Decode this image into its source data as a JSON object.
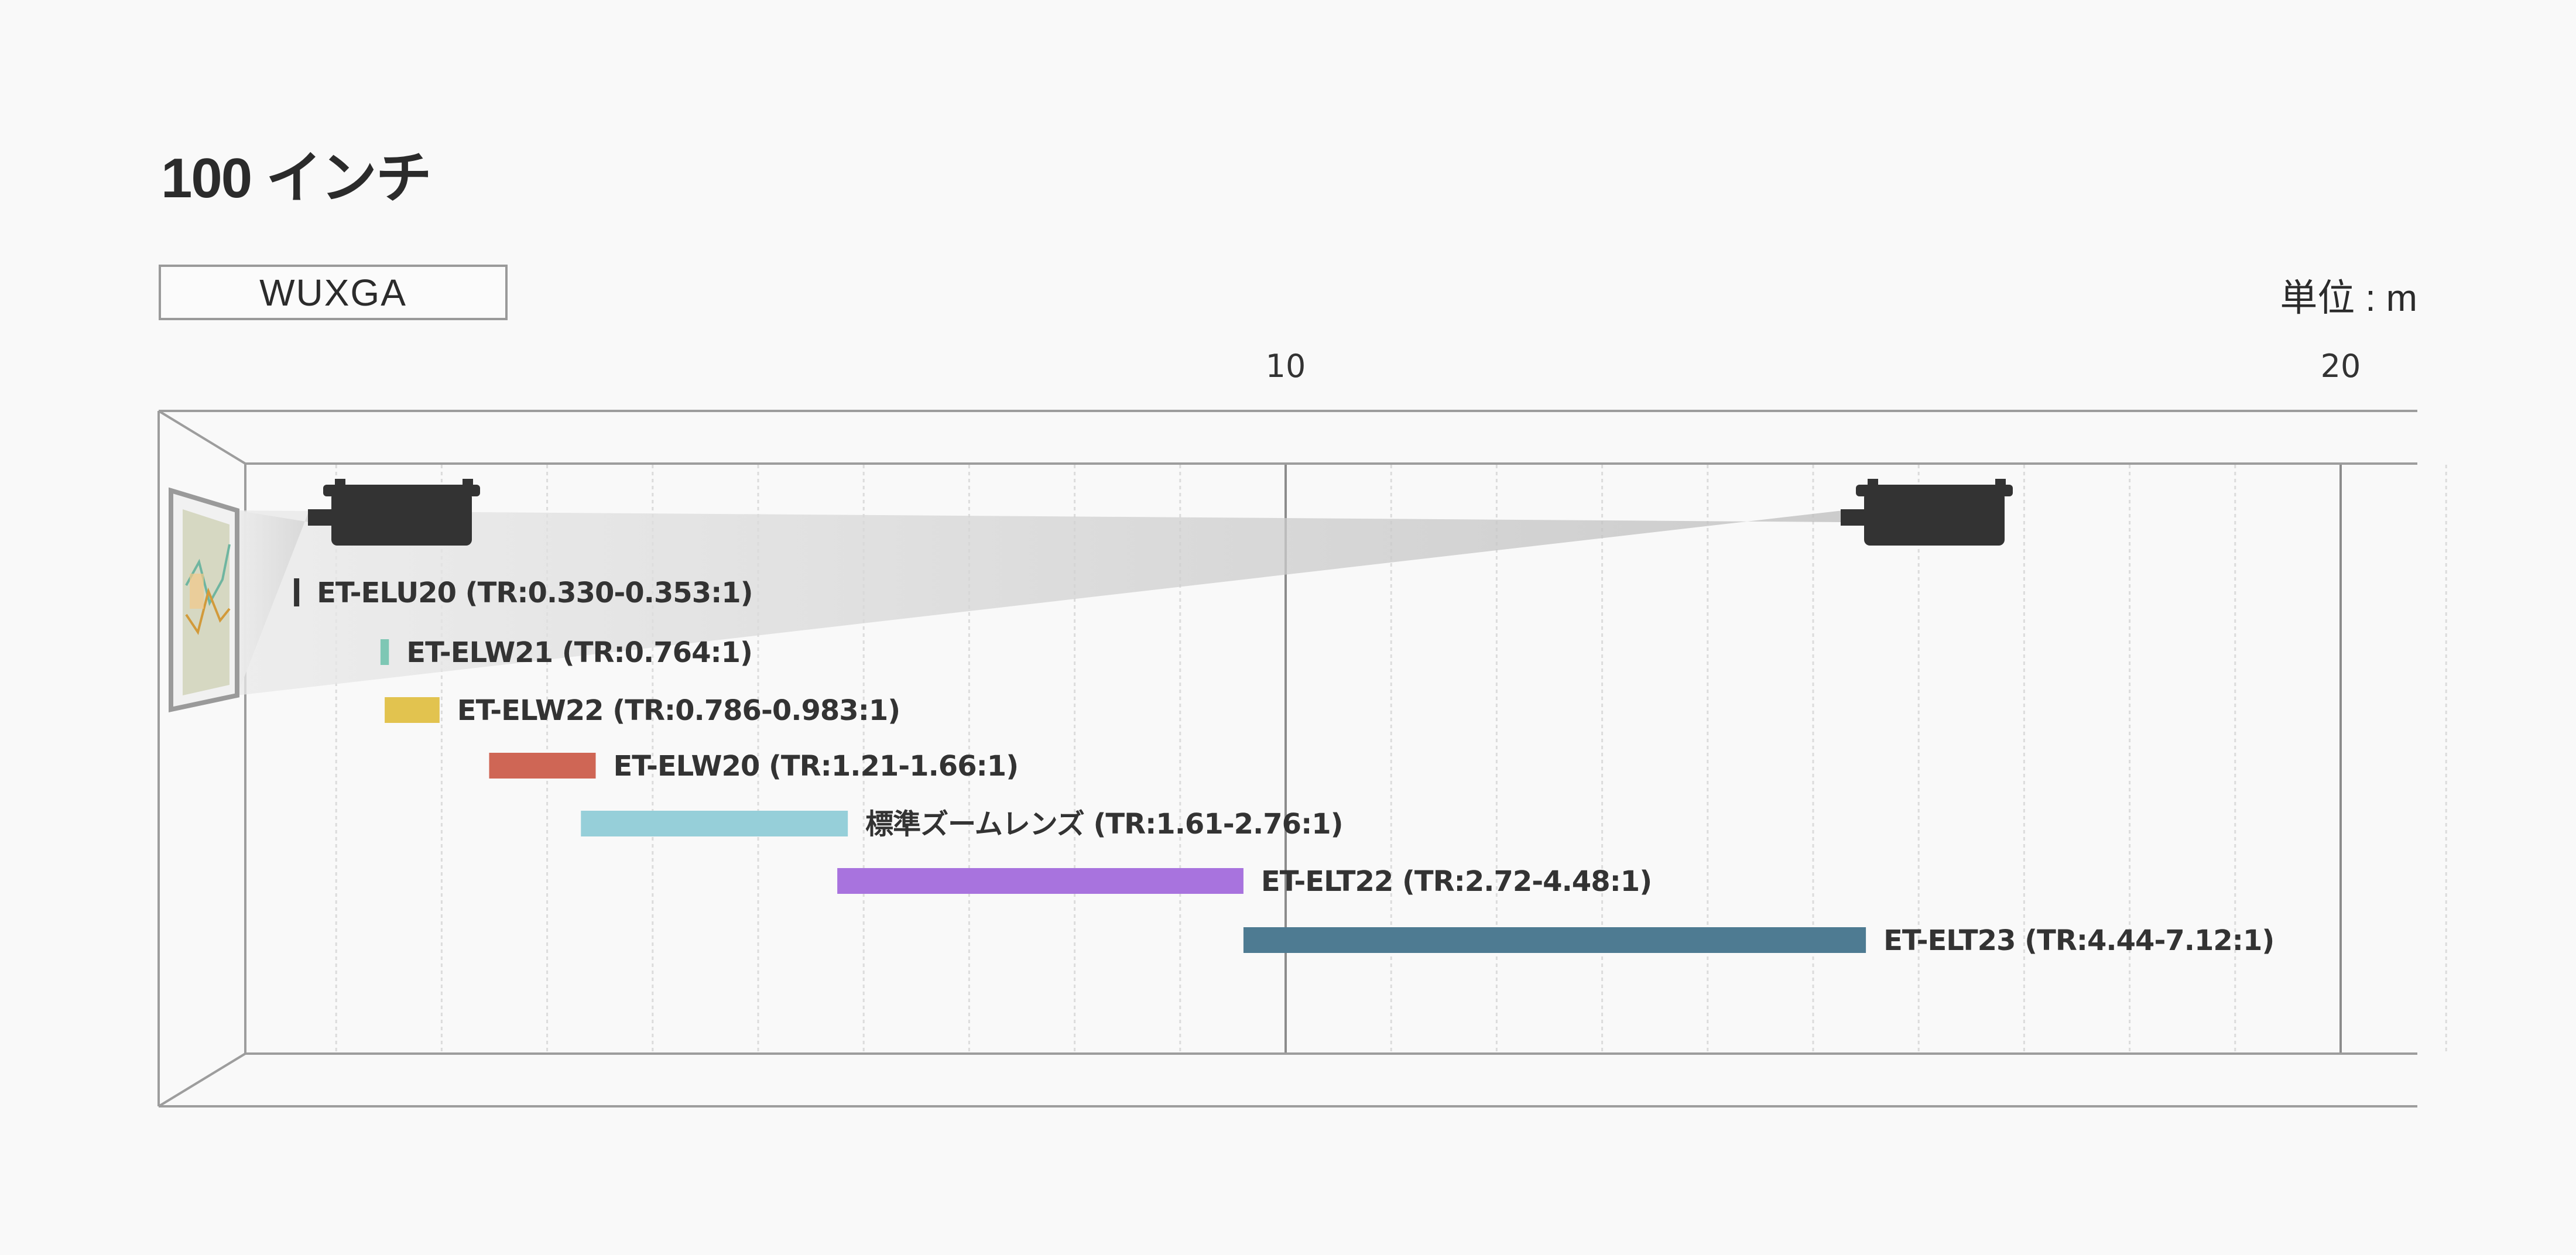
{
  "header": {
    "title": "100 インチ",
    "resolution_label": "WUXGA",
    "unit_label": "単位 : m"
  },
  "chart_data": {
    "type": "range-bar",
    "title": "100 インチ",
    "unit": "m",
    "xlim": [
      0,
      21.4
    ],
    "x_ticks": [
      10,
      20
    ],
    "grid": "vertical gridlines every 1 m",
    "series": [
      {
        "label": "ET-ELU20 (TR:0.330-0.353:1)",
        "start": 0.6,
        "end": 0.65,
        "color": "#333333"
      },
      {
        "label": "ET-ELW21  (TR:0.764:1)",
        "start": 1.42,
        "end": 1.5,
        "color": "#7ec7b4"
      },
      {
        "label": "ET-ELW22  (TR:0.786-0.983:1)",
        "start": 1.46,
        "end": 1.98,
        "color": "#e2c34f"
      },
      {
        "label": "ET-ELW20  (TR:1.21-1.66:1)",
        "start": 2.45,
        "end": 3.46,
        "color": "#cf6655"
      },
      {
        "label": "標準ズームレンズ (TR:1.61-2.76:1)",
        "start": 3.32,
        "end": 5.85,
        "color": "#96cfd9"
      },
      {
        "label": "ET-ELT22  (TR:2.72-4.48:1)",
        "start": 5.75,
        "end": 9.6,
        "color": "#a873de"
      },
      {
        "label": "ET-ELT23  (TR:4.44-7.12:1)",
        "start": 9.6,
        "end": 15.5,
        "color": "#4e7b92"
      }
    ]
  }
}
